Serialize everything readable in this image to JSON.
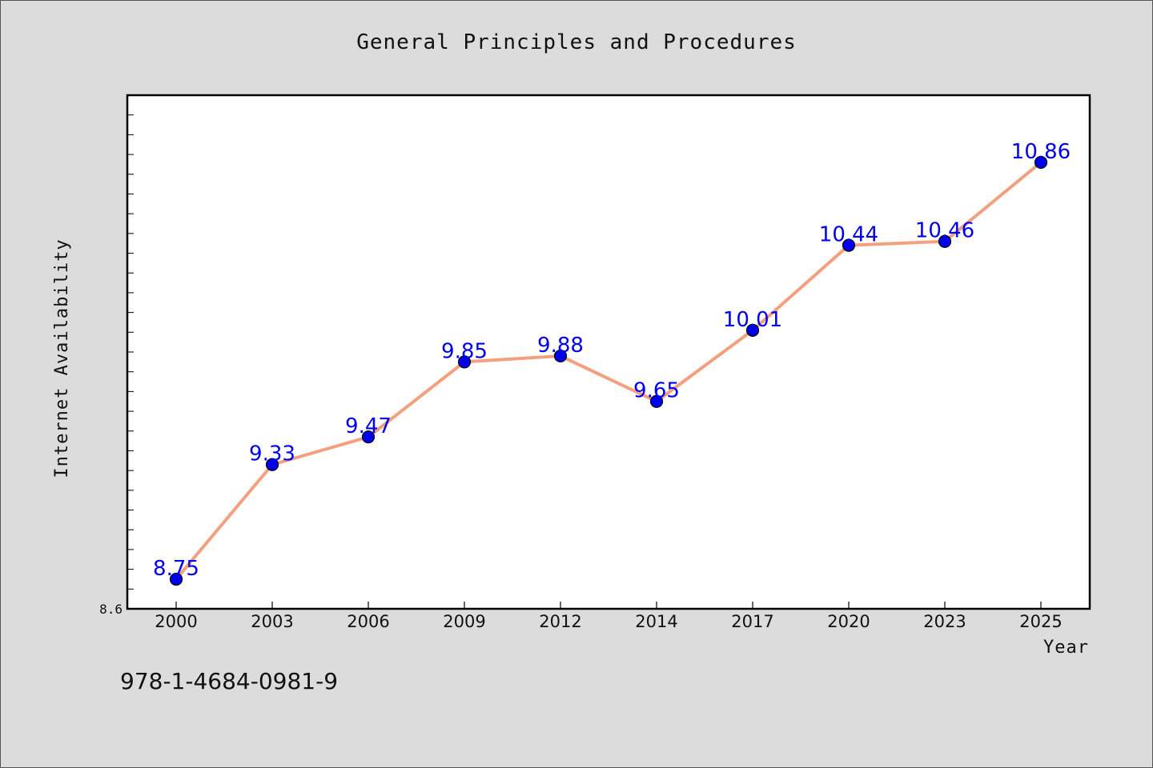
{
  "chart_data": {
    "type": "line",
    "title": "General Principles and Procedures",
    "xlabel": "Year",
    "ylabel": "Internet Availability",
    "categories": [
      "2000",
      "2003",
      "2006",
      "2009",
      "2012",
      "2014",
      "2017",
      "2020",
      "2023",
      "2025"
    ],
    "series": [
      {
        "values": [
          8.75,
          9.33,
          9.47,
          9.85,
          9.88,
          9.65,
          10.01,
          10.44,
          10.46,
          10.86
        ],
        "labels": [
          "8.75",
          "9.33",
          "9.47",
          "9.85",
          "9.88",
          "9.65",
          "10.01",
          "10.44",
          "10.46",
          "10.86"
        ]
      }
    ],
    "ylim": [
      8.6,
      11.2
    ],
    "yticks_labeled": [
      "8.6"
    ],
    "grid": false,
    "legend": "none",
    "colors": {
      "line": "#f4a07f",
      "marker": "#0000ee",
      "data_label": "#0000ee",
      "plot_background": "#ffffff",
      "page_background": "#dcdcdc"
    }
  },
  "footer": {
    "isbn": "978-1-4684-0981-9"
  }
}
